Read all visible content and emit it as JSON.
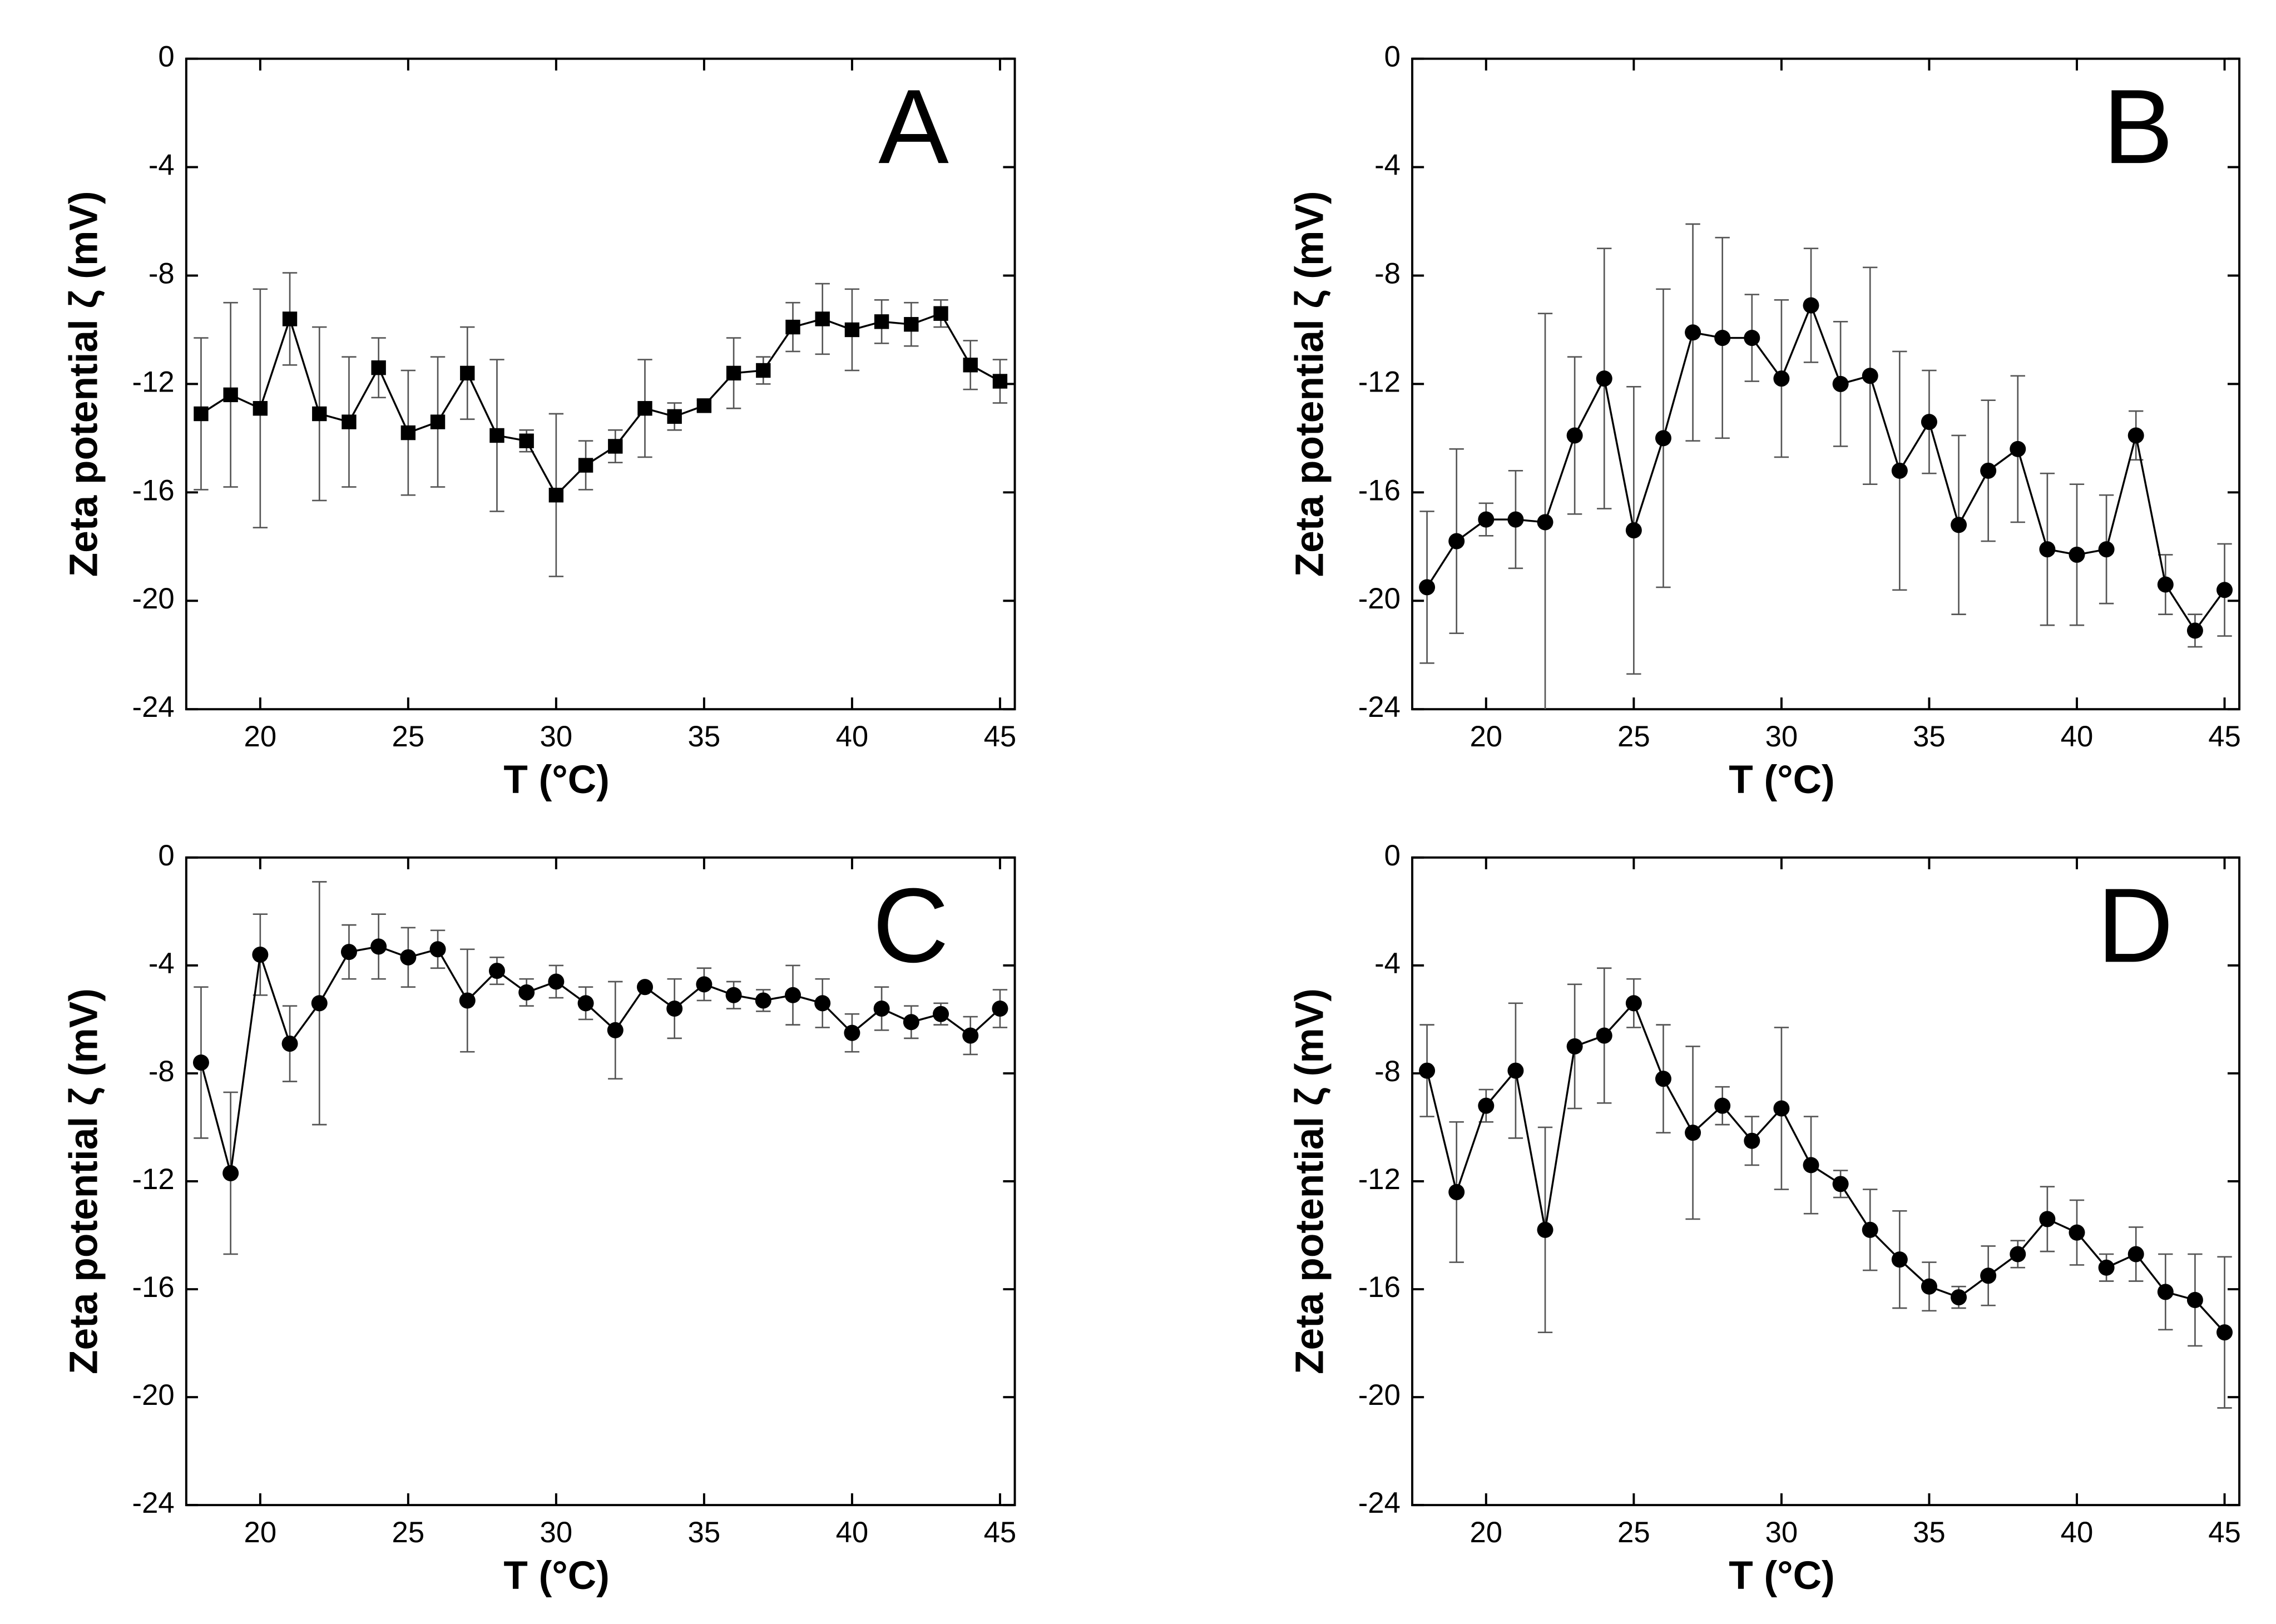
{
  "chart_data": [
    {
      "type": "line",
      "annotation": "A",
      "marker": "square",
      "color": "#000000",
      "error_color": "#555555",
      "xlabel": "T (°C)",
      "ylabel": "Zeta potential ζ (mV)",
      "xlim": [
        17.5,
        45.5
      ],
      "xticks": [
        20,
        25,
        30,
        35,
        40,
        45
      ],
      "ylim": [
        -24,
        0
      ],
      "yticks": [
        0,
        -4,
        -8,
        -12,
        -16,
        -20,
        -24
      ],
      "x": [
        18,
        19,
        20,
        21,
        22,
        23,
        24,
        25,
        26,
        27,
        28,
        29,
        30,
        31,
        32,
        33,
        34,
        35,
        36,
        37,
        38,
        39,
        40,
        41,
        42,
        43,
        44,
        45
      ],
      "values": [
        -13.1,
        -12.4,
        -12.9,
        -9.6,
        -13.1,
        -13.4,
        -11.4,
        -13.8,
        -13.4,
        -11.6,
        -13.9,
        -14.1,
        -16.1,
        -15.0,
        -14.3,
        -12.9,
        -13.2,
        -12.8,
        -11.6,
        -11.5,
        -9.9,
        -9.6,
        -10.0,
        -9.7,
        -9.8,
        -9.4,
        -11.3,
        -11.9
      ],
      "errors": [
        2.8,
        3.4,
        4.4,
        1.7,
        3.2,
        2.4,
        1.1,
        2.3,
        2.4,
        1.7,
        2.8,
        0.4,
        3.0,
        0.9,
        0.6,
        1.8,
        0.5,
        0.2,
        1.3,
        0.5,
        0.9,
        1.3,
        1.5,
        0.8,
        0.8,
        0.5,
        0.9,
        0.8
      ]
    },
    {
      "type": "line",
      "annotation": "B",
      "marker": "circle",
      "color": "#000000",
      "error_color": "#555555",
      "xlabel": "T (°C)",
      "ylabel": "Zeta potential ζ (mV)",
      "xlim": [
        17.5,
        45.5
      ],
      "xticks": [
        20,
        25,
        30,
        35,
        40,
        45
      ],
      "ylim": [
        -24,
        0
      ],
      "yticks": [
        0,
        -4,
        -8,
        -12,
        -16,
        -20,
        -24
      ],
      "x": [
        18,
        19,
        20,
        21,
        22,
        23,
        24,
        25,
        26,
        27,
        28,
        29,
        30,
        31,
        32,
        33,
        34,
        35,
        36,
        37,
        38,
        39,
        40,
        41,
        42,
        43,
        44,
        45
      ],
      "values": [
        -19.5,
        -17.8,
        -17.0,
        -17.0,
        -17.1,
        -13.9,
        -11.8,
        -17.4,
        -14.0,
        -10.1,
        -10.3,
        -10.3,
        -11.8,
        -9.1,
        -12.0,
        -11.7,
        -15.2,
        -13.4,
        -17.2,
        -15.2,
        -14.4,
        -18.1,
        -18.3,
        -18.1,
        -13.9,
        -19.4,
        -21.1,
        -19.6
      ],
      "errors": [
        2.8,
        3.4,
        0.6,
        1.8,
        7.7,
        2.9,
        4.8,
        5.3,
        5.5,
        4.0,
        3.7,
        1.6,
        2.9,
        2.1,
        2.3,
        4.0,
        4.4,
        1.9,
        3.3,
        2.6,
        2.7,
        2.8,
        2.6,
        2.0,
        0.9,
        1.1,
        0.6,
        1.7
      ]
    },
    {
      "type": "line",
      "annotation": "C",
      "marker": "circle",
      "color": "#000000",
      "error_color": "#555555",
      "xlabel": "T (°C)",
      "ylabel": "Zeta potential ζ (mV)",
      "xlim": [
        17.5,
        45.5
      ],
      "xticks": [
        20,
        25,
        30,
        35,
        40,
        45
      ],
      "ylim": [
        -24,
        0
      ],
      "yticks": [
        0,
        -4,
        -8,
        -12,
        -16,
        -20,
        -24
      ],
      "x": [
        18,
        19,
        20,
        21,
        22,
        23,
        24,
        25,
        26,
        27,
        28,
        29,
        30,
        31,
        32,
        33,
        34,
        35,
        36,
        37,
        38,
        39,
        40,
        41,
        42,
        43,
        44,
        45
      ],
      "values": [
        -7.6,
        -11.7,
        -3.6,
        -6.9,
        -5.4,
        -3.5,
        -3.3,
        -3.7,
        -3.4,
        -5.3,
        -4.2,
        -5.0,
        -4.6,
        -5.4,
        -6.4,
        -4.8,
        -5.6,
        -4.7,
        -5.1,
        -5.3,
        -5.1,
        -5.4,
        -6.5,
        -5.6,
        -6.1,
        -5.8,
        -6.6,
        -5.6
      ],
      "errors": [
        2.8,
        3.0,
        1.5,
        1.4,
        4.5,
        1.0,
        1.2,
        1.1,
        0.7,
        1.9,
        0.5,
        0.5,
        0.6,
        0.6,
        1.8,
        0.1,
        1.1,
        0.6,
        0.5,
        0.4,
        1.1,
        0.9,
        0.7,
        0.8,
        0.6,
        0.4,
        0.7,
        0.7
      ]
    },
    {
      "type": "line",
      "annotation": "D",
      "marker": "circle",
      "color": "#000000",
      "error_color": "#555555",
      "xlabel": "T (°C)",
      "ylabel": "Zeta potential ζ (mV)",
      "xlim": [
        17.5,
        45.5
      ],
      "xticks": [
        20,
        25,
        30,
        35,
        40,
        45
      ],
      "ylim": [
        -24,
        0
      ],
      "yticks": [
        0,
        -4,
        -8,
        -12,
        -16,
        -20,
        -24
      ],
      "x": [
        18,
        19,
        20,
        21,
        22,
        23,
        24,
        25,
        26,
        27,
        28,
        29,
        30,
        31,
        32,
        33,
        34,
        35,
        36,
        37,
        38,
        39,
        40,
        41,
        42,
        43,
        44,
        45
      ],
      "values": [
        -7.9,
        -12.4,
        -9.2,
        -7.9,
        -13.8,
        -7.0,
        -6.6,
        -5.4,
        -8.2,
        -10.2,
        -9.2,
        -10.5,
        -9.3,
        -11.4,
        -12.1,
        -13.8,
        -14.9,
        -15.9,
        -16.3,
        -15.5,
        -14.7,
        -13.4,
        -13.9,
        -15.2,
        -14.7,
        -16.1,
        -16.4,
        -17.6
      ],
      "errors": [
        1.7,
        2.6,
        0.6,
        2.5,
        3.8,
        2.3,
        2.5,
        0.9,
        2.0,
        3.2,
        0.7,
        0.9,
        3.0,
        1.8,
        0.5,
        1.5,
        1.8,
        0.9,
        0.4,
        1.1,
        0.5,
        1.2,
        1.2,
        0.5,
        1.0,
        1.4,
        1.7,
        2.8
      ]
    }
  ]
}
